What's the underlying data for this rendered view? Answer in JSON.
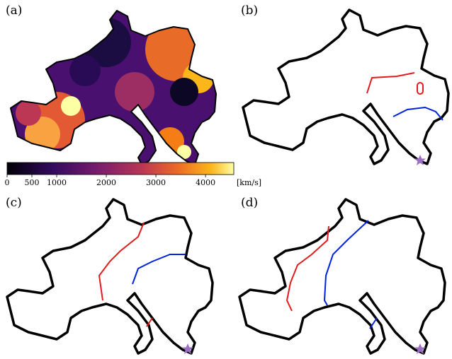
{
  "panels": [
    {
      "label": "(a)"
    },
    {
      "label": "(b)"
    },
    {
      "label": "(c)"
    },
    {
      "label": "(d)"
    }
  ],
  "colorbar": {
    "range": [
      0,
      4570
    ],
    "ticks": [
      0,
      500,
      1000,
      2000,
      3000,
      4000
    ],
    "unit": "[km/s]"
  }
}
